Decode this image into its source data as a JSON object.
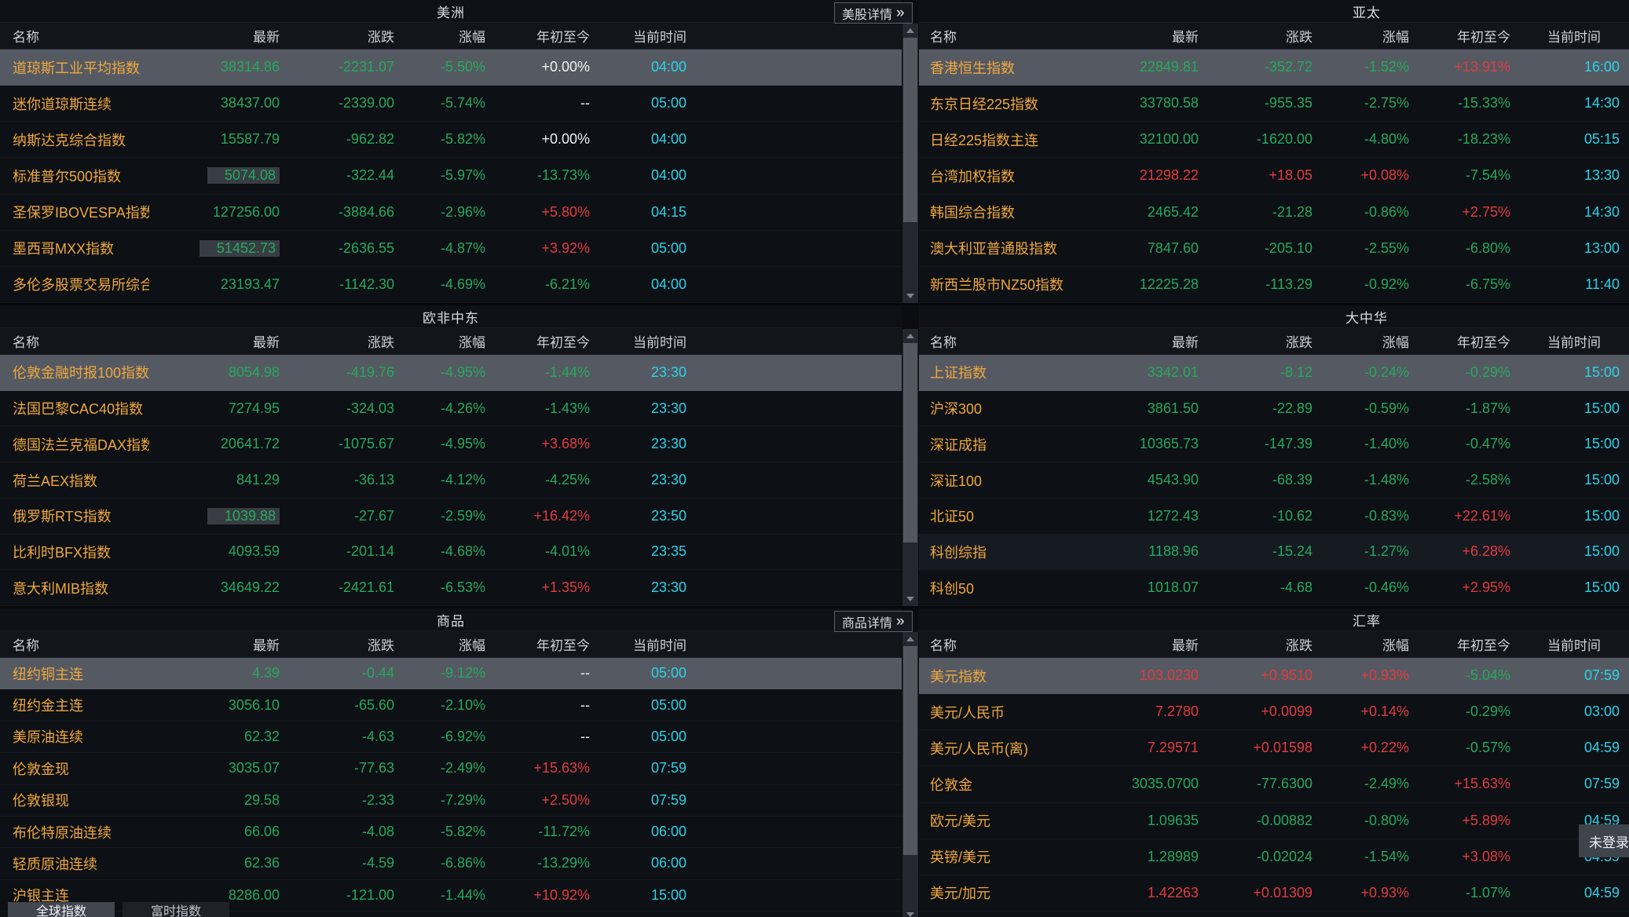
{
  "columns": [
    "名称",
    "最新",
    "涨跌",
    "涨幅",
    "年初至今",
    "当前时间"
  ],
  "icons": {
    "double_chevron": "»"
  },
  "login_badge": "未登录",
  "tabs": [
    {
      "label": "全球指数",
      "active": true
    },
    {
      "label": "富时指数",
      "active": false
    }
  ],
  "sections": [
    {
      "left": {
        "title": "美洲",
        "detail_button": "美股详情",
        "rows": [
          {
            "name": "道琼斯工业平均指数",
            "last": "38314.86",
            "chg": "-2231.07",
            "pct": "-5.50%",
            "ytd": "+0.00%",
            "time": "04:00",
            "colors": [
              "down",
              "down",
              "down",
              "flat"
            ],
            "highlight": true
          },
          {
            "name": "迷你道琼斯连续",
            "last": "38437.00",
            "chg": "-2339.00",
            "pct": "-5.74%",
            "ytd": "--",
            "time": "05:00",
            "colors": [
              "down",
              "down",
              "down",
              "flat"
            ]
          },
          {
            "name": "纳斯达克综合指数",
            "last": "15587.79",
            "chg": "-962.82",
            "pct": "-5.82%",
            "ytd": "+0.00%",
            "time": "04:00",
            "colors": [
              "down",
              "down",
              "down",
              "flat"
            ]
          },
          {
            "name": "标准普尔500指数",
            "last": "5074.08",
            "chg": "-322.44",
            "pct": "-5.97%",
            "ytd": "-13.73%",
            "time": "04:00",
            "colors": [
              "down",
              "down",
              "down",
              "down"
            ],
            "flash_last": true
          },
          {
            "name": "圣保罗IBOVESPA指数",
            "last": "127256.00",
            "chg": "-3884.66",
            "pct": "-2.96%",
            "ytd": "+5.80%",
            "time": "04:15",
            "colors": [
              "down",
              "down",
              "down",
              "up"
            ]
          },
          {
            "name": "墨西哥MXX指数",
            "last": "51452.73",
            "chg": "-2636.55",
            "pct": "-4.87%",
            "ytd": "+3.92%",
            "time": "05:00",
            "colors": [
              "down",
              "down",
              "down",
              "up"
            ],
            "flash_last": true
          },
          {
            "name": "多伦多股票交易所综合",
            "last": "23193.47",
            "chg": "-1142.30",
            "pct": "-4.69%",
            "ytd": "-6.21%",
            "time": "04:00",
            "colors": [
              "down",
              "down",
              "down",
              "down"
            ]
          }
        ]
      },
      "right": {
        "title": "亚太",
        "rows": [
          {
            "name": "香港恒生指数",
            "last": "22849.81",
            "chg": "-352.72",
            "pct": "-1.52%",
            "ytd": "+13.91%",
            "time": "16:00",
            "colors": [
              "down",
              "down",
              "down",
              "up"
            ],
            "highlight": true
          },
          {
            "name": "东京日经225指数",
            "last": "33780.58",
            "chg": "-955.35",
            "pct": "-2.75%",
            "ytd": "-15.33%",
            "time": "14:30",
            "colors": [
              "down",
              "down",
              "down",
              "down"
            ]
          },
          {
            "name": "日经225指数主连",
            "last": "32100.00",
            "chg": "-1620.00",
            "pct": "-4.80%",
            "ytd": "-18.23%",
            "time": "05:15",
            "colors": [
              "down",
              "down",
              "down",
              "down"
            ]
          },
          {
            "name": "台湾加权指数",
            "last": "21298.22",
            "chg": "+18.05",
            "pct": "+0.08%",
            "ytd": "-7.54%",
            "time": "13:30",
            "colors": [
              "up",
              "up",
              "up",
              "down"
            ]
          },
          {
            "name": "韩国综合指数",
            "last": "2465.42",
            "chg": "-21.28",
            "pct": "-0.86%",
            "ytd": "+2.75%",
            "time": "14:30",
            "colors": [
              "down",
              "down",
              "down",
              "up"
            ]
          },
          {
            "name": "澳大利亚普通股指数",
            "last": "7847.60",
            "chg": "-205.10",
            "pct": "-2.55%",
            "ytd": "-6.80%",
            "time": "13:00",
            "colors": [
              "down",
              "down",
              "down",
              "down"
            ]
          },
          {
            "name": "新西兰股市NZ50指数",
            "last": "12225.28",
            "chg": "-113.29",
            "pct": "-0.92%",
            "ytd": "-6.75%",
            "time": "11:40",
            "colors": [
              "down",
              "down",
              "down",
              "down"
            ]
          }
        ]
      }
    },
    {
      "left": {
        "title": "欧非中东",
        "rows": [
          {
            "name": "伦敦金融时报100指数",
            "last": "8054.98",
            "chg": "-419.76",
            "pct": "-4.95%",
            "ytd": "-1.44%",
            "time": "23:30",
            "colors": [
              "down",
              "down",
              "down",
              "down"
            ],
            "highlight": true
          },
          {
            "name": "法国巴黎CAC40指数",
            "last": "7274.95",
            "chg": "-324.03",
            "pct": "-4.26%",
            "ytd": "-1.43%",
            "time": "23:30",
            "colors": [
              "down",
              "down",
              "down",
              "down"
            ]
          },
          {
            "name": "德国法兰克福DAX指数",
            "last": "20641.72",
            "chg": "-1075.67",
            "pct": "-4.95%",
            "ytd": "+3.68%",
            "time": "23:30",
            "colors": [
              "down",
              "down",
              "down",
              "up"
            ]
          },
          {
            "name": "荷兰AEX指数",
            "last": "841.29",
            "chg": "-36.13",
            "pct": "-4.12%",
            "ytd": "-4.25%",
            "time": "23:30",
            "colors": [
              "down",
              "down",
              "down",
              "down"
            ]
          },
          {
            "name": "俄罗斯RTS指数",
            "last": "1039.88",
            "chg": "-27.67",
            "pct": "-2.59%",
            "ytd": "+16.42%",
            "time": "23:50",
            "colors": [
              "down",
              "down",
              "down",
              "up"
            ],
            "flash_last": true
          },
          {
            "name": "比利时BFX指数",
            "last": "4093.59",
            "chg": "-201.14",
            "pct": "-4.68%",
            "ytd": "-4.01%",
            "time": "23:35",
            "colors": [
              "down",
              "down",
              "down",
              "down"
            ]
          },
          {
            "name": "意大利MIB指数",
            "last": "34649.22",
            "chg": "-2421.61",
            "pct": "-6.53%",
            "ytd": "+1.35%",
            "time": "23:30",
            "colors": [
              "down",
              "down",
              "down",
              "up"
            ]
          }
        ]
      },
      "right": {
        "title": "大中华",
        "rows": [
          {
            "name": "上证指数",
            "last": "3342.01",
            "chg": "-8.12",
            "pct": "-0.24%",
            "ytd": "-0.29%",
            "time": "15:00",
            "colors": [
              "down",
              "down",
              "down",
              "down"
            ],
            "highlight": true
          },
          {
            "name": "沪深300",
            "last": "3861.50",
            "chg": "-22.89",
            "pct": "-0.59%",
            "ytd": "-1.87%",
            "time": "15:00",
            "colors": [
              "down",
              "down",
              "down",
              "down"
            ]
          },
          {
            "name": "深证成指",
            "last": "10365.73",
            "chg": "-147.39",
            "pct": "-1.40%",
            "ytd": "-0.47%",
            "time": "15:00",
            "colors": [
              "down",
              "down",
              "down",
              "down"
            ]
          },
          {
            "name": "深证100",
            "last": "4543.90",
            "chg": "-68.39",
            "pct": "-1.48%",
            "ytd": "-2.58%",
            "time": "15:00",
            "colors": [
              "down",
              "down",
              "down",
              "down"
            ]
          },
          {
            "name": "北证50",
            "last": "1272.43",
            "chg": "-10.62",
            "pct": "-0.83%",
            "ytd": "+22.61%",
            "time": "15:00",
            "colors": [
              "down",
              "down",
              "down",
              "up"
            ]
          },
          {
            "name": "科创综指",
            "last": "1188.96",
            "chg": "-15.24",
            "pct": "-1.27%",
            "ytd": "+6.28%",
            "time": "15:00",
            "colors": [
              "down",
              "down",
              "down",
              "up"
            ],
            "alt": true
          },
          {
            "name": "科创50",
            "last": "1018.07",
            "chg": "-4.68",
            "pct": "-0.46%",
            "ytd": "+2.95%",
            "time": "15:00",
            "colors": [
              "down",
              "down",
              "down",
              "up"
            ]
          }
        ]
      }
    },
    {
      "left": {
        "title": "商品",
        "detail_button": "商品详情",
        "rows": [
          {
            "name": "纽约铜主连",
            "last": "4.39",
            "chg": "-0.44",
            "pct": "-9.12%",
            "ytd": "--",
            "time": "05:00",
            "colors": [
              "down",
              "down",
              "down",
              "flat"
            ],
            "highlight": true
          },
          {
            "name": "纽约金主连",
            "last": "3056.10",
            "chg": "-65.60",
            "pct": "-2.10%",
            "ytd": "--",
            "time": "05:00",
            "colors": [
              "down",
              "down",
              "down",
              "flat"
            ]
          },
          {
            "name": "美原油连续",
            "last": "62.32",
            "chg": "-4.63",
            "pct": "-6.92%",
            "ytd": "--",
            "time": "05:00",
            "colors": [
              "down",
              "down",
              "down",
              "flat"
            ]
          },
          {
            "name": "伦敦金现",
            "last": "3035.07",
            "chg": "-77.63",
            "pct": "-2.49%",
            "ytd": "+15.63%",
            "time": "07:59",
            "colors": [
              "down",
              "down",
              "down",
              "up"
            ]
          },
          {
            "name": "伦敦银现",
            "last": "29.58",
            "chg": "-2.33",
            "pct": "-7.29%",
            "ytd": "+2.50%",
            "time": "07:59",
            "colors": [
              "down",
              "down",
              "down",
              "up"
            ]
          },
          {
            "name": "布伦特原油连续",
            "last": "66.06",
            "chg": "-4.08",
            "pct": "-5.82%",
            "ytd": "-11.72%",
            "time": "06:00",
            "colors": [
              "down",
              "down",
              "down",
              "down"
            ]
          },
          {
            "name": "轻质原油连续",
            "last": "62.36",
            "chg": "-4.59",
            "pct": "-6.86%",
            "ytd": "-13.29%",
            "time": "06:00",
            "colors": [
              "down",
              "down",
              "down",
              "down"
            ]
          },
          {
            "name": "沪银主连",
            "last": "8286.00",
            "chg": "-121.00",
            "pct": "-1.44%",
            "ytd": "+10.92%",
            "time": "15:00",
            "colors": [
              "down",
              "down",
              "down",
              "up"
            ]
          }
        ]
      },
      "right": {
        "title": "汇率",
        "rows": [
          {
            "name": "美元指数",
            "last": "103.0230",
            "chg": "+0.9510",
            "pct": "+0.93%",
            "ytd": "-5.04%",
            "time": "07:59",
            "colors": [
              "up",
              "up",
              "up",
              "down"
            ],
            "highlight": true
          },
          {
            "name": "美元/人民币",
            "last": "7.2780",
            "chg": "+0.0099",
            "pct": "+0.14%",
            "ytd": "-0.29%",
            "time": "03:00",
            "colors": [
              "up",
              "up",
              "up",
              "down"
            ]
          },
          {
            "name": "美元/人民币(离)",
            "last": "7.29571",
            "chg": "+0.01598",
            "pct": "+0.22%",
            "ytd": "-0.57%",
            "time": "04:59",
            "colors": [
              "up",
              "up",
              "up",
              "down"
            ]
          },
          {
            "name": "伦敦金",
            "last": "3035.0700",
            "chg": "-77.6300",
            "pct": "-2.49%",
            "ytd": "+15.63%",
            "time": "07:59",
            "colors": [
              "down",
              "down",
              "down",
              "up"
            ]
          },
          {
            "name": "欧元/美元",
            "last": "1.09635",
            "chg": "-0.00882",
            "pct": "-0.80%",
            "ytd": "+5.89%",
            "time": "04:59",
            "colors": [
              "down",
              "down",
              "down",
              "up"
            ]
          },
          {
            "name": "英镑/美元",
            "last": "1.28989",
            "chg": "-0.02024",
            "pct": "-1.54%",
            "ytd": "+3.08%",
            "time": "04:59",
            "colors": [
              "down",
              "down",
              "down",
              "up"
            ]
          },
          {
            "name": "美元/加元",
            "last": "1.42263",
            "chg": "+0.01309",
            "pct": "+0.93%",
            "ytd": "-1.07%",
            "time": "04:59",
            "colors": [
              "up",
              "up",
              "up",
              "down"
            ]
          }
        ]
      }
    }
  ]
}
